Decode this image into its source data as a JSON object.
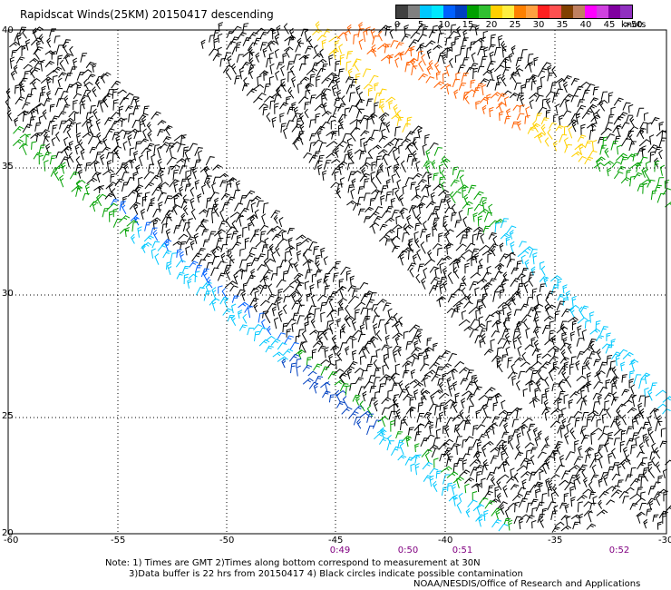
{
  "title": "Rapidscat Winds(25KM) 20150417 descending",
  "legend": {
    "colors": [
      "#404040",
      "#808080",
      "#00c8ff",
      "#00e8ff",
      "#0060ff",
      "#0040c0",
      "#00a000",
      "#30c030",
      "#ffd000",
      "#ffee40",
      "#ff8000",
      "#ffa040",
      "#ff2020",
      "#ff5050",
      "#804000",
      "#c08060",
      "#ff00ff",
      "#d040e0",
      "#8000a0",
      "#9030c0"
    ],
    "labels": [
      "0",
      "5",
      "10",
      "15",
      "20",
      "25",
      "30",
      "35",
      "40",
      "45",
      ">50"
    ],
    "units": "knots"
  },
  "axes": {
    "lon_labels": [
      "-60",
      "-55",
      "-50",
      "-45",
      "-40",
      "-35",
      "-30"
    ],
    "lat_labels": [
      "40",
      "35",
      "30",
      "25",
      "20"
    ]
  },
  "pass_times": [
    "0:49",
    "0:50",
    "0:51",
    "0:52"
  ],
  "notes": {
    "line1": "Note: 1) Times are GMT 2)Times along bottom correspond to measurement at 30N",
    "line2": "3)Data buffer is 22 hrs from 20150417 4) Black circles indicate possible contamination",
    "line3": "NOAA/NESDIS/Office of Research and Applications"
  }
}
